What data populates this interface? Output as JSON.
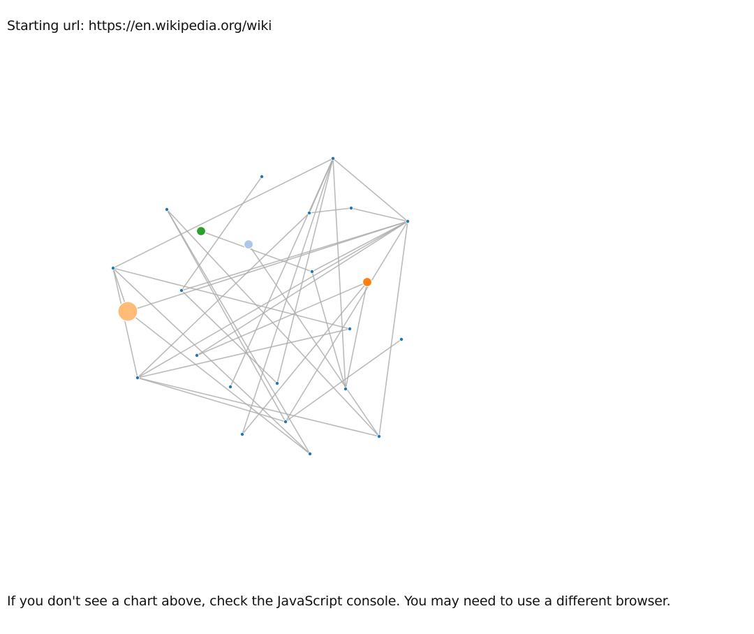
{
  "header": {
    "starting_url": "Starting url: https://en.wikipedia.org/wiki"
  },
  "graph": {
    "type": "force-directed-network",
    "nodes": [
      {
        "id": "n0",
        "color": "#ffbb78",
        "size": "large"
      },
      {
        "id": "n1",
        "color": "#2ca02c",
        "size": "medium"
      },
      {
        "id": "n2",
        "color": "#aec7e8",
        "size": "medium"
      },
      {
        "id": "n3",
        "color": "#ff7f0e",
        "size": "medium"
      },
      {
        "id": "n4",
        "color": "#1f77b4",
        "size": "small"
      },
      {
        "id": "n5",
        "color": "#1f77b4",
        "size": "small"
      },
      {
        "id": "n6",
        "color": "#1f77b4",
        "size": "small"
      },
      {
        "id": "n7",
        "color": "#1f77b4",
        "size": "small"
      },
      {
        "id": "n8",
        "color": "#1f77b4",
        "size": "small"
      },
      {
        "id": "n9",
        "color": "#1f77b4",
        "size": "small"
      },
      {
        "id": "n10",
        "color": "#1f77b4",
        "size": "small"
      },
      {
        "id": "n11",
        "color": "#1f77b4",
        "size": "small"
      },
      {
        "id": "n12",
        "color": "#1f77b4",
        "size": "small"
      },
      {
        "id": "n13",
        "color": "#1f77b4",
        "size": "small"
      },
      {
        "id": "n14",
        "color": "#1f77b4",
        "size": "small"
      },
      {
        "id": "n15",
        "color": "#1f77b4",
        "size": "small"
      },
      {
        "id": "n16",
        "color": "#1f77b4",
        "size": "small"
      },
      {
        "id": "n17",
        "color": "#1f77b4",
        "size": "small"
      },
      {
        "id": "n18",
        "color": "#1f77b4",
        "size": "small"
      },
      {
        "id": "n19",
        "color": "#1f77b4",
        "size": "small"
      },
      {
        "id": "n20",
        "color": "#1f77b4",
        "size": "small"
      },
      {
        "id": "n21",
        "color": "#1f77b4",
        "size": "small"
      },
      {
        "id": "n22",
        "color": "#1f77b4",
        "size": "small"
      },
      {
        "id": "n23",
        "color": "#1f77b4",
        "size": "small"
      }
    ],
    "links": [
      [
        "n4",
        "n10"
      ],
      [
        "n4",
        "n18"
      ],
      [
        "n4",
        "n17"
      ],
      [
        "n4",
        "n21"
      ],
      [
        "n4",
        "n8"
      ],
      [
        "n4",
        "n19"
      ],
      [
        "n4",
        "n7"
      ],
      [
        "n5",
        "n9"
      ],
      [
        "n6",
        "n22"
      ],
      [
        "n6",
        "n23"
      ],
      [
        "n6",
        "n20"
      ],
      [
        "n7",
        "n11"
      ],
      [
        "n7",
        "n0"
      ],
      [
        "n7",
        "n15"
      ],
      [
        "n7",
        "n9"
      ],
      [
        "n7",
        "n22"
      ],
      [
        "n7",
        "n16"
      ],
      [
        "n7",
        "n12"
      ],
      [
        "n7",
        "n23"
      ],
      [
        "n8",
        "n13"
      ],
      [
        "n8",
        "n0"
      ],
      [
        "n8",
        "n15"
      ],
      [
        "n8",
        "n20"
      ],
      [
        "n9",
        "n18"
      ],
      [
        "n10",
        "n15"
      ],
      [
        "n10",
        "n12"
      ],
      [
        "n1",
        "n11"
      ],
      [
        "n11",
        "n19"
      ],
      [
        "n2",
        "n22"
      ],
      [
        "n3",
        "n21"
      ],
      [
        "n3",
        "n19"
      ],
      [
        "n3",
        "n16"
      ],
      [
        "n0",
        "n20"
      ],
      [
        "n15",
        "n23"
      ],
      [
        "n15",
        "n22"
      ],
      [
        "n15",
        "n13"
      ],
      [
        "n14",
        "n23"
      ]
    ]
  },
  "footer": {
    "note": "If you don't see a chart above, check the JavaScript console. You may need to use a different browser."
  }
}
